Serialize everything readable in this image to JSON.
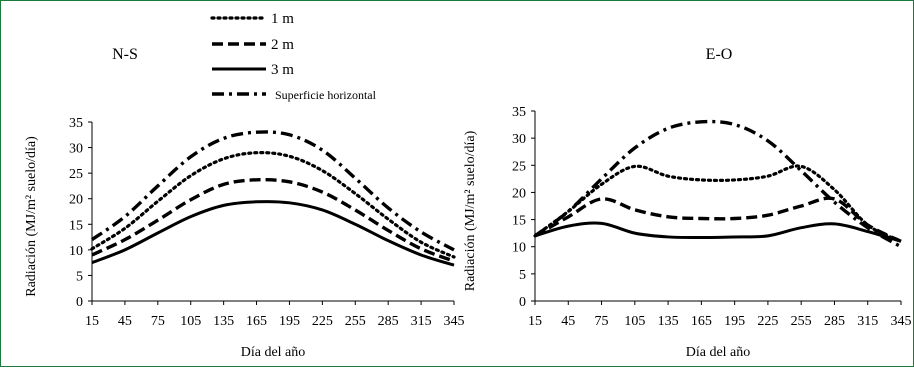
{
  "legend": {
    "items": [
      {
        "label": "1 m",
        "style": "dotted"
      },
      {
        "label": "2 m",
        "style": "dashed"
      },
      {
        "label": "3 m",
        "style": "solid"
      },
      {
        "label": "Superficie horizontal",
        "style": "dash-dot"
      }
    ]
  },
  "colors": {
    "frame": "#1a7a3c",
    "lines": "#000000"
  },
  "chart_data": [
    {
      "type": "line",
      "title": "N-S",
      "xlabel": "Día del año",
      "ylabel": "Radiación (MJ/m² suelo/día)",
      "ylim": [
        0,
        35
      ],
      "yticks": [
        "0",
        "5",
        "10",
        "15",
        "20",
        "25",
        "30",
        "35"
      ],
      "xticks": [
        "15",
        "45",
        "75",
        "105",
        "135",
        "165",
        "195",
        "225",
        "255",
        "285",
        "315",
        "345"
      ],
      "grid": false,
      "x": [
        15,
        45,
        75,
        105,
        135,
        165,
        195,
        225,
        255,
        285,
        315,
        345
      ],
      "series": [
        {
          "name": "1 m",
          "values": [
            10.2,
            14.2,
            19.5,
            24.5,
            27.8,
            29.0,
            28.3,
            25.5,
            21.0,
            16.0,
            11.5,
            8.6
          ]
        },
        {
          "name": "2 m",
          "values": [
            9.0,
            12.0,
            15.8,
            19.8,
            22.8,
            23.7,
            23.3,
            21.3,
            17.8,
            13.8,
            10.2,
            7.8
          ]
        },
        {
          "name": "3 m",
          "values": [
            7.5,
            10.0,
            13.3,
            16.5,
            18.7,
            19.4,
            19.2,
            17.8,
            15.0,
            11.8,
            9.0,
            7.0
          ]
        },
        {
          "name": "Superficie horizontal",
          "values": [
            12.0,
            16.5,
            22.5,
            28.2,
            31.8,
            33.0,
            32.5,
            29.5,
            24.0,
            18.2,
            13.5,
            10.0
          ]
        }
      ]
    },
    {
      "type": "line",
      "title": "E-O",
      "xlabel": "Día del año",
      "ylabel": "Radiación (MJ/m² suelo/día)",
      "ylim": [
        0,
        35
      ],
      "yticks": [
        "0",
        "5",
        "10",
        "15",
        "20",
        "25",
        "30",
        "35"
      ],
      "xticks": [
        "15",
        "45",
        "75",
        "105",
        "135",
        "165",
        "195",
        "225",
        "255",
        "285",
        "315",
        "345"
      ],
      "grid": false,
      "x": [
        15,
        45,
        75,
        105,
        135,
        165,
        195,
        225,
        255,
        285,
        315,
        345
      ],
      "series": [
        {
          "name": "1 m",
          "values": [
            12.0,
            16.5,
            21.5,
            24.8,
            23.0,
            22.3,
            22.3,
            23.0,
            24.8,
            20.5,
            14.0,
            11.0
          ]
        },
        {
          "name": "2 m",
          "values": [
            12.0,
            15.5,
            18.8,
            16.8,
            15.5,
            15.2,
            15.2,
            15.8,
            17.5,
            18.8,
            14.0,
            11.0
          ]
        },
        {
          "name": "3 m",
          "values": [
            12.0,
            13.8,
            14.3,
            12.5,
            11.8,
            11.7,
            11.8,
            12.0,
            13.5,
            14.2,
            12.8,
            11.0
          ]
        },
        {
          "name": "Superficie horizontal",
          "values": [
            12.0,
            16.5,
            22.5,
            28.2,
            31.8,
            33.0,
            32.5,
            29.5,
            24.0,
            18.2,
            13.5,
            10.0
          ]
        }
      ]
    }
  ]
}
